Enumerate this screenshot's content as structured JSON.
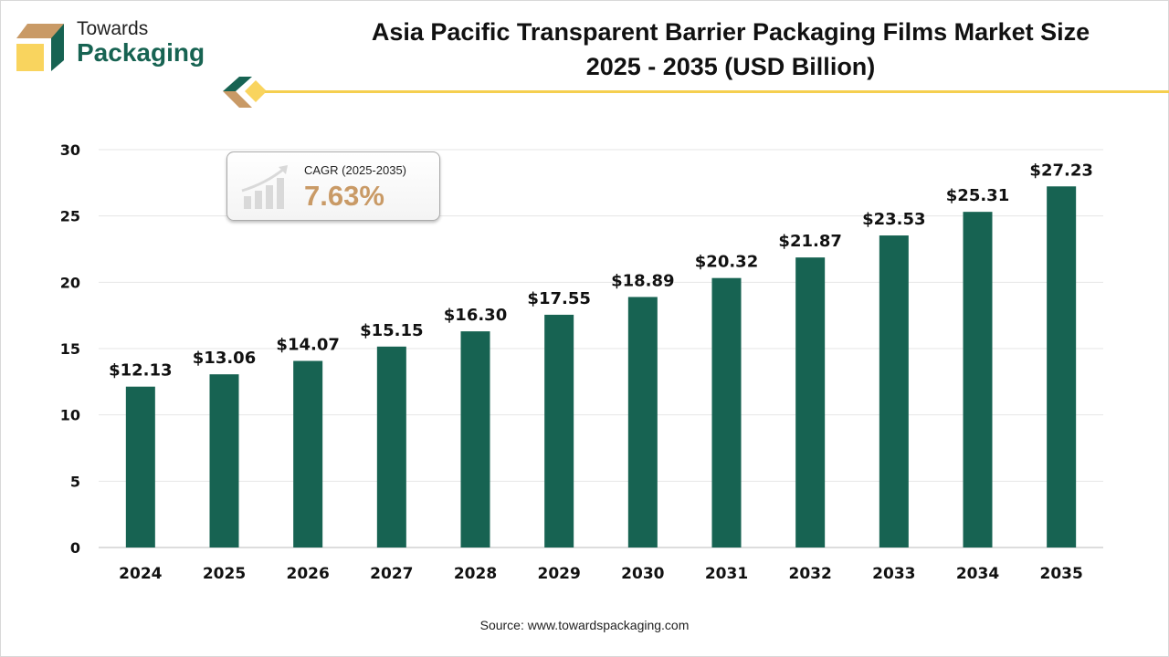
{
  "logo": {
    "line1": "Towards",
    "line2": "Packaging"
  },
  "colors": {
    "bar": "#176352",
    "accent": "#f5cf4f",
    "brown": "#c99a66",
    "grid": "#e6e6e6"
  },
  "cagr": {
    "label": "CAGR (2025-2035)",
    "value": "7.63%",
    "icon": "growth-chart-icon"
  },
  "source": "Source: www.towardspackaging.com",
  "chart_data": {
    "type": "bar",
    "title_line1": "Asia Pacific Transparent Barrier Packaging Films Market Size",
    "title_line2": "2025 - 2035 (USD Billion)",
    "categories": [
      "2024",
      "2025",
      "2026",
      "2027",
      "2028",
      "2029",
      "2030",
      "2031",
      "2032",
      "2033",
      "2034",
      "2035"
    ],
    "values": [
      12.13,
      13.06,
      14.07,
      15.15,
      16.3,
      17.55,
      18.89,
      20.32,
      21.87,
      23.53,
      25.31,
      27.23
    ],
    "labels": [
      "$12.13",
      "$13.06",
      "$14.07",
      "$15.15",
      "$16.30",
      "$17.55",
      "$18.89",
      "$20.32",
      "$21.87",
      "$23.53",
      "$25.31",
      "$27.23"
    ],
    "ylim": [
      0,
      30
    ],
    "yticks": [
      0,
      5,
      10,
      15,
      20,
      25,
      30
    ],
    "grid": true,
    "xlabel": "",
    "ylabel": ""
  }
}
